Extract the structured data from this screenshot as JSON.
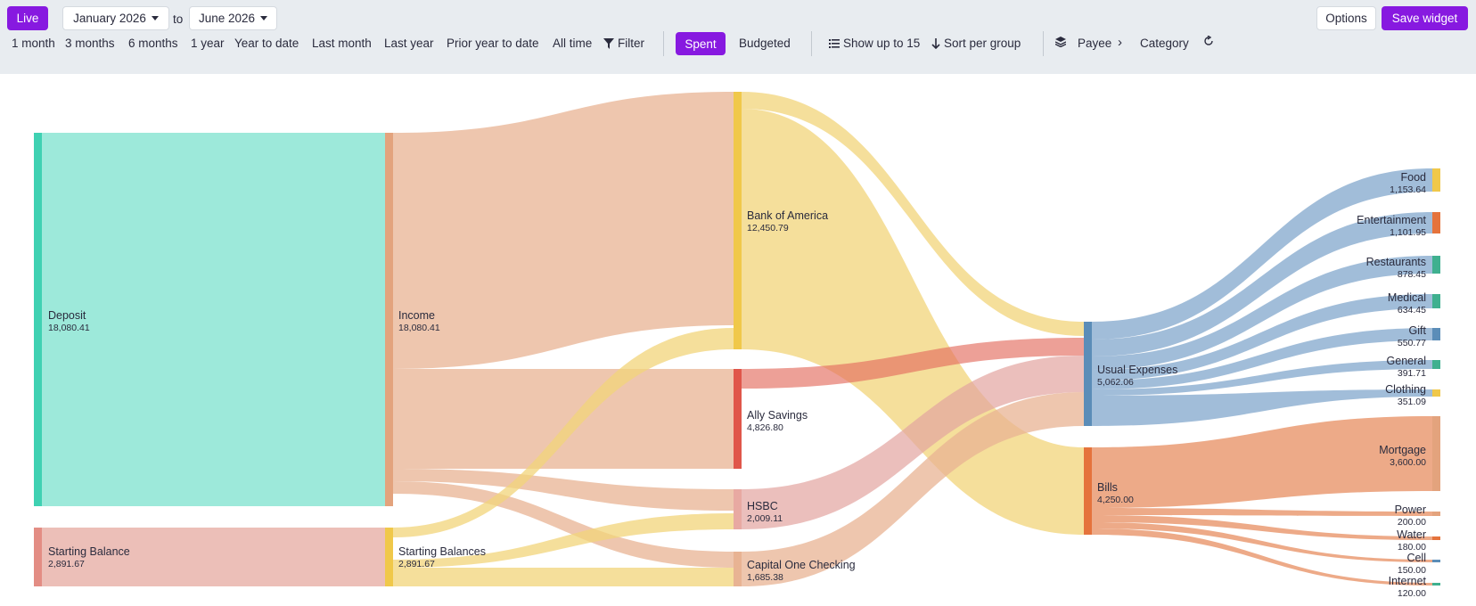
{
  "toolbar": {
    "live_label": "Live",
    "start_month": "January 2026",
    "to_label": "to",
    "end_month": "June 2026",
    "options_label": "Options",
    "save_widget_label": "Save widget",
    "ranges": [
      "1 month",
      "3 months",
      "6 months",
      "1 year",
      "Year to date",
      "Last month",
      "Last year",
      "Prior year to date",
      "All time"
    ],
    "filter_label": "Filter",
    "spent_label": "Spent",
    "budgeted_label": "Budgeted",
    "show_up_to_label": "Show up to 15",
    "sort_label": "Sort per group",
    "payee_label": "Payee",
    "category_label": "Category",
    "accent_color": "#8719e0"
  },
  "sankey": {
    "nodes": {
      "deposit": {
        "label": "Deposit",
        "value": "18,080.41",
        "color": "#3fd1b2",
        "fill": "#9de9da"
      },
      "starting_balance": {
        "label": "Starting Balance",
        "value": "2,891.67",
        "color": "#e38d84",
        "fill": "#ecbfb8"
      },
      "income": {
        "label": "Income",
        "value": "18,080.41",
        "color": "#e3a37d"
      },
      "starting_balances": {
        "label": "Starting Balances",
        "value": "2,891.67",
        "color": "#f0c84a"
      },
      "bank_of_america": {
        "label": "Bank of America",
        "value": "12,450.79",
        "color": "#f0c84a"
      },
      "ally_savings": {
        "label": "Ally Savings",
        "value": "4,826.80",
        "color": "#e0564a"
      },
      "hsbc": {
        "label": "HSBC",
        "value": "2,009.11",
        "color": "#e8a9a2"
      },
      "capital_one": {
        "label": "Capital One Checking",
        "value": "1,685.38",
        "color": "#e8b393"
      },
      "usual_expenses": {
        "label": "Usual Expenses",
        "value": "5,062.06",
        "color": "#5b8db8"
      },
      "bills": {
        "label": "Bills",
        "value": "4,250.00",
        "color": "#e5733c"
      },
      "food": {
        "label": "Food",
        "value": "1,153.64",
        "color": "#f0c84a"
      },
      "entertainment": {
        "label": "Entertainment",
        "value": "1,101.95",
        "color": "#e5733c"
      },
      "restaurants": {
        "label": "Restaurants",
        "value": "878.45",
        "color": "#3fb08f"
      },
      "medical": {
        "label": "Medical",
        "value": "634.45",
        "color": "#3fb08f"
      },
      "gift": {
        "label": "Gift",
        "value": "550.77",
        "color": "#5b8db8"
      },
      "general": {
        "label": "General",
        "value": "391.71",
        "color": "#3fb08f"
      },
      "clothing": {
        "label": "Clothing",
        "value": "351.09",
        "color": "#f0c84a"
      },
      "mortgage": {
        "label": "Mortgage",
        "value": "3,600.00",
        "color": "#e3a37d"
      },
      "power": {
        "label": "Power",
        "value": "200.00",
        "color": "#e3a37d"
      },
      "water": {
        "label": "Water",
        "value": "180.00",
        "color": "#e5733c"
      },
      "cell": {
        "label": "Cell",
        "value": "150.00",
        "color": "#5b8db8"
      },
      "internet": {
        "label": "Internet",
        "value": "120.00",
        "color": "#3fb08f"
      }
    },
    "flow_colors": {
      "income": "#e8b393",
      "starting": "#f2d479",
      "bank": "#f2d479",
      "ally": "#e36d5f",
      "hsbc": "#e3a4a0",
      "capone": "#e8b393",
      "usual": "#89acd0",
      "bills": "#e8956a"
    }
  }
}
